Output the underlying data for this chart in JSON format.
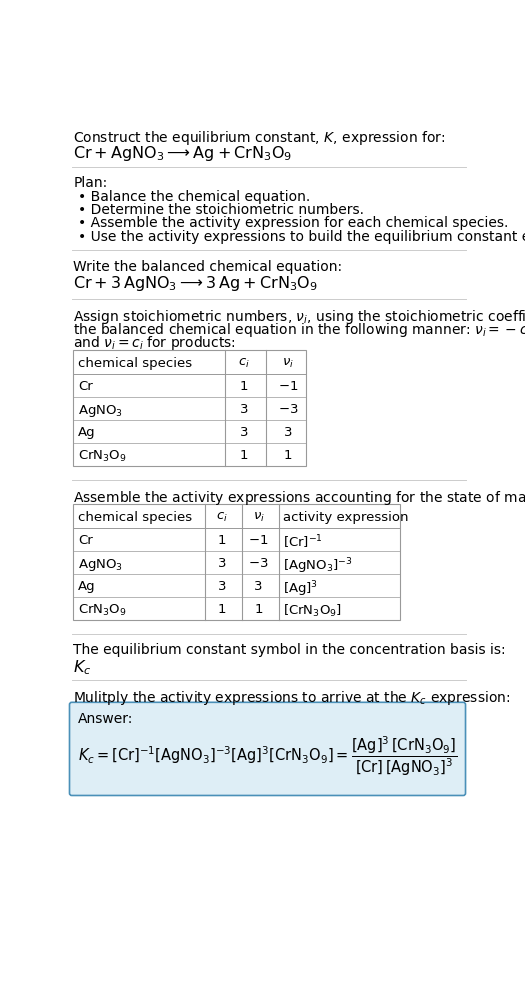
{
  "title_line1": "Construct the equilibrium constant, $K$, expression for:",
  "title_line2": "$\\mathrm{Cr + AgNO_3 \\longrightarrow Ag + CrN_3O_9}$",
  "plan_header": "Plan:",
  "plan_bullets": [
    "Balance the chemical equation.",
    "Determine the stoichiometric numbers.",
    "Assemble the activity expression for each chemical species.",
    "Use the activity expressions to build the equilibrium constant expression."
  ],
  "balanced_header": "Write the balanced chemical equation:",
  "balanced_eq": "$\\mathrm{Cr + 3\\,AgNO_3 \\longrightarrow 3\\,Ag + CrN_3O_9}$",
  "stoich_intro": "Assign stoichiometric numbers, $\\nu_i$, using the stoichiometric coefficients, $c_i$, from\nthe balanced chemical equation in the following manner: $\\nu_i = -c_i$ for reactants\nand $\\nu_i = c_i$ for products:",
  "table1_cols": [
    "chemical species",
    "$c_i$",
    "$\\nu_i$"
  ],
  "table1_data": [
    [
      "Cr",
      "1",
      "$-1$"
    ],
    [
      "AgNO$_3$",
      "3",
      "$-3$"
    ],
    [
      "Ag",
      "3",
      "3"
    ],
    [
      "CrN$_3$O$_9$",
      "1",
      "1"
    ]
  ],
  "activity_intro": "Assemble the activity expressions accounting for the state of matter and $\\nu_i$:",
  "table2_cols": [
    "chemical species",
    "$c_i$",
    "$\\nu_i$",
    "activity expression"
  ],
  "table2_data": [
    [
      "Cr",
      "1",
      "$-1$",
      "$[\\mathrm{Cr}]^{-1}$"
    ],
    [
      "AgNO$_3$",
      "3",
      "$-3$",
      "$[\\mathrm{AgNO_3}]^{-3}$"
    ],
    [
      "Ag",
      "3",
      "3",
      "$[\\mathrm{Ag}]^{3}$"
    ],
    [
      "CrN$_3$O$_9$",
      "1",
      "1",
      "$[\\mathrm{CrN_3O_9}]$"
    ]
  ],
  "kc_intro": "The equilibrium constant symbol in the concentration basis is:",
  "kc_symbol": "$K_c$",
  "multiply_intro": "Mulitply the activity expressions to arrive at the $K_c$ expression:",
  "answer_label": "Answer:",
  "bg_color": "#ffffff",
  "sep_color": "#cccccc",
  "table_color": "#999999",
  "answer_bg": "#deeef6",
  "answer_border": "#4a90b8",
  "font_size": 10.0
}
